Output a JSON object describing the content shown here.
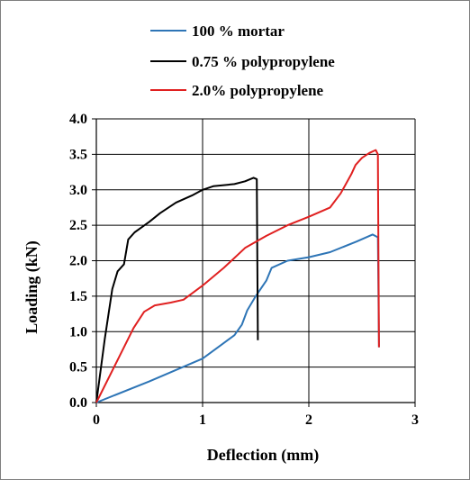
{
  "chart_data": {
    "type": "line",
    "title": "",
    "xlabel": "Deflection (mm)",
    "ylabel": "Loading (kN)",
    "xlim": [
      0,
      3
    ],
    "ylim": [
      0,
      4
    ],
    "x_ticks": [
      "0",
      "1",
      "2",
      "3"
    ],
    "y_ticks": [
      "0.0",
      "0.5",
      "1.0",
      "1.5",
      "2.0",
      "2.5",
      "3.0",
      "3.5",
      "4.0"
    ],
    "grid": "both",
    "legend_position": "top",
    "series": [
      {
        "name": "100 % mortar",
        "color": "#2e75b6",
        "points": [
          [
            0,
            0
          ],
          [
            0.5,
            0.3
          ],
          [
            1.0,
            0.62
          ],
          [
            1.3,
            0.95
          ],
          [
            1.37,
            1.1
          ],
          [
            1.42,
            1.3
          ],
          [
            1.5,
            1.5
          ],
          [
            1.6,
            1.72
          ],
          [
            1.65,
            1.9
          ],
          [
            1.8,
            2.0
          ],
          [
            2.0,
            2.05
          ],
          [
            2.2,
            2.12
          ],
          [
            2.45,
            2.27
          ],
          [
            2.6,
            2.37
          ],
          [
            2.65,
            2.33
          ],
          [
            2.66,
            0.78
          ]
        ]
      },
      {
        "name": "0.75 % polypropylene",
        "color": "#000000",
        "points": [
          [
            0,
            0
          ],
          [
            0.08,
            0.9
          ],
          [
            0.15,
            1.6
          ],
          [
            0.2,
            1.85
          ],
          [
            0.26,
            1.95
          ],
          [
            0.3,
            2.3
          ],
          [
            0.36,
            2.4
          ],
          [
            0.5,
            2.55
          ],
          [
            0.6,
            2.67
          ],
          [
            0.75,
            2.82
          ],
          [
            0.9,
            2.92
          ],
          [
            1.0,
            3.0
          ],
          [
            1.1,
            3.05
          ],
          [
            1.3,
            3.08
          ],
          [
            1.4,
            3.12
          ],
          [
            1.48,
            3.17
          ],
          [
            1.51,
            3.15
          ],
          [
            1.52,
            0.88
          ]
        ]
      },
      {
        "name": "2.0% polypropylene",
        "color": "#e02020",
        "points": [
          [
            0,
            0
          ],
          [
            0.2,
            0.6
          ],
          [
            0.35,
            1.05
          ],
          [
            0.45,
            1.28
          ],
          [
            0.55,
            1.37
          ],
          [
            0.7,
            1.41
          ],
          [
            0.82,
            1.45
          ],
          [
            1.0,
            1.65
          ],
          [
            1.2,
            1.9
          ],
          [
            1.4,
            2.18
          ],
          [
            1.6,
            2.35
          ],
          [
            1.8,
            2.5
          ],
          [
            2.0,
            2.62
          ],
          [
            2.2,
            2.75
          ],
          [
            2.3,
            2.95
          ],
          [
            2.4,
            3.22
          ],
          [
            2.44,
            3.35
          ],
          [
            2.5,
            3.45
          ],
          [
            2.57,
            3.52
          ],
          [
            2.63,
            3.56
          ],
          [
            2.65,
            3.5
          ],
          [
            2.66,
            0.78
          ]
        ]
      }
    ]
  }
}
